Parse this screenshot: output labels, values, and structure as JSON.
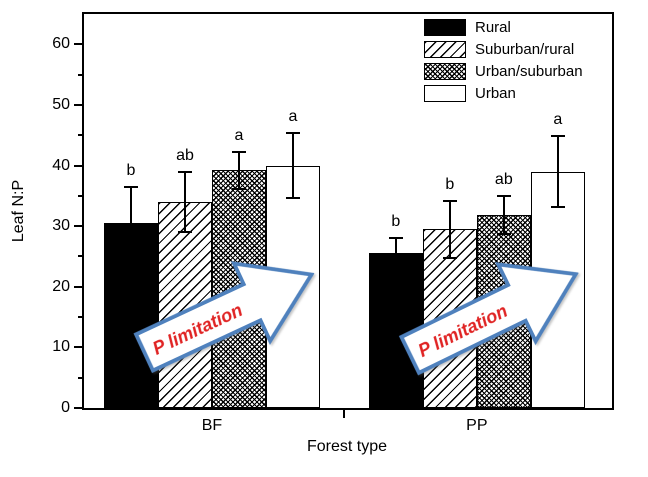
{
  "chart_data": {
    "type": "bar",
    "title": "",
    "xlabel": "Forest type",
    "ylabel": "Leaf N:P",
    "ylim": [
      0,
      65
    ],
    "yticks_major": [
      0,
      10,
      20,
      30,
      40,
      50,
      60
    ],
    "yticks_minor": [
      5,
      15,
      25,
      35,
      45,
      55
    ],
    "categories": [
      "BF",
      "PP"
    ],
    "series": [
      {
        "name": "Rural",
        "pattern": "solid-black",
        "values": [
          30.5,
          25.5
        ],
        "errors": [
          6.0,
          2.6
        ],
        "sig_letters": [
          "b",
          "b"
        ]
      },
      {
        "name": "Suburban/rural",
        "pattern": "diagonal-hatch",
        "values": [
          34.0,
          29.5
        ],
        "errors": [
          5.0,
          4.7
        ],
        "sig_letters": [
          "ab",
          "b"
        ]
      },
      {
        "name": "Urban/suburban",
        "pattern": "cross-hatch",
        "values": [
          39.2,
          31.8
        ],
        "errors": [
          3.0,
          3.1
        ],
        "sig_letters": [
          "a",
          "ab"
        ]
      },
      {
        "name": "Urban",
        "pattern": "white",
        "values": [
          40.0,
          39.0
        ],
        "errors": [
          5.3,
          5.8
        ],
        "sig_letters": [
          "a",
          "a"
        ]
      }
    ],
    "legend": {
      "position": "top-right",
      "entries": [
        "Rural",
        "Suburban/rural",
        "Urban/suburban",
        "Urban"
      ]
    },
    "annotations": [
      {
        "text": "P limitation",
        "group": "BF"
      },
      {
        "text": "P limitation",
        "group": "PP"
      }
    ],
    "colors": {
      "bar_fill": "#000000",
      "bar_outline": "#000000",
      "axis": "#000000",
      "arrow_border": "#4f81bd",
      "arrow_fill": "#ffffff",
      "annotation_text": "#e02424"
    },
    "grid": false
  }
}
